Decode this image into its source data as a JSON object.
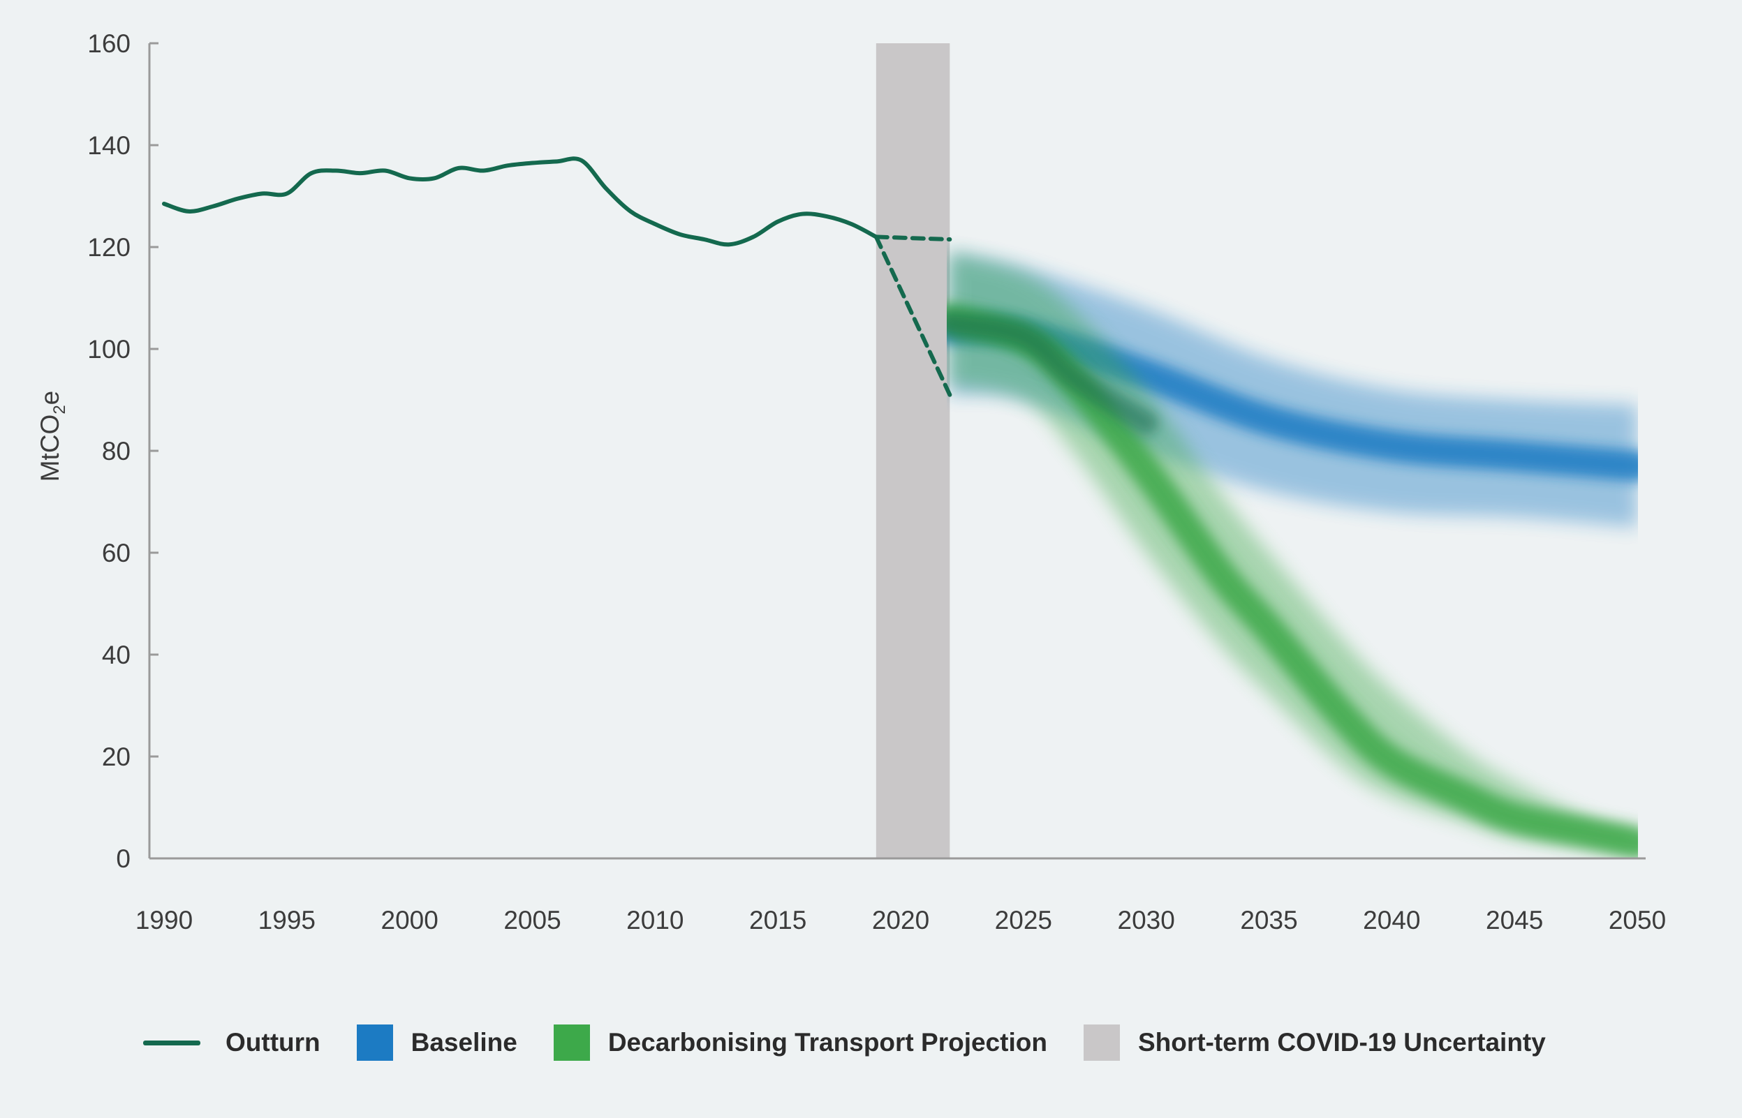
{
  "chart_data": {
    "type": "line",
    "title": "",
    "xlabel": "",
    "ylabel": "MtCO2e",
    "ylabel_parts": {
      "main": "MtCO",
      "sub": "2",
      "tail": "e"
    },
    "xlim": [
      1990,
      2050
    ],
    "ylim": [
      0,
      160
    ],
    "x_ticks": [
      "1990",
      "1995",
      "2000",
      "2005",
      "2010",
      "2015",
      "2020",
      "2025",
      "2030",
      "2035",
      "2040",
      "2045",
      "2050"
    ],
    "y_ticks": [
      "160",
      "140",
      "120",
      "100",
      "80",
      "60",
      "40",
      "20",
      "0"
    ],
    "grid": false,
    "legend_position": "bottom",
    "colors": {
      "outturn": "#14694e",
      "baseline": "#1c7bc3",
      "decarbonising": "#3da94a",
      "covid": "#c9c7c8",
      "axis": "#9a9a9a"
    },
    "covid_uncertainty": {
      "x_start": 2019,
      "x_end": 2022
    },
    "series": [
      {
        "name": "Outturn",
        "x": [
          1990,
          1991,
          1992,
          1993,
          1994,
          1995,
          1996,
          1997,
          1998,
          1999,
          2000,
          2001,
          2002,
          2003,
          2004,
          2005,
          2006,
          2007,
          2008,
          2009,
          2010,
          2011,
          2012,
          2013,
          2014,
          2015,
          2016,
          2017,
          2018,
          2019
        ],
        "values": [
          128.5,
          127,
          128,
          129.5,
          130.5,
          130.5,
          134.5,
          135,
          134.5,
          135,
          133.5,
          133.5,
          135.5,
          135,
          136,
          136.5,
          136.8,
          137,
          131.5,
          127,
          124.5,
          122.5,
          121.5,
          120.5,
          122,
          125,
          126.5,
          126,
          124.5,
          122
        ]
      },
      {
        "name": "",
        "style": "dashed",
        "x": [
          2019,
          2022
        ],
        "values": [
          122,
          121.5
        ]
      },
      {
        "name": "",
        "style": "dashed",
        "x": [
          2019,
          2022
        ],
        "values": [
          122,
          91
        ]
      },
      {
        "name": "Baseline",
        "style": "band",
        "x": [
          2022,
          2025,
          2030,
          2035,
          2040,
          2045,
          2050
        ],
        "values": [
          104,
          103,
          95,
          86,
          81,
          79,
          77
        ],
        "lower": [
          91,
          90,
          80,
          72,
          68,
          67,
          65
        ],
        "upper": [
          119,
          116,
          108,
          98,
          92,
          90,
          89
        ]
      },
      {
        "name": "Decarbonising Transport Projection",
        "style": "band",
        "x": [
          2022,
          2025,
          2027,
          2030,
          2033,
          2035,
          2038,
          2040,
          2043,
          2045,
          2048,
          2050
        ],
        "values": [
          106,
          102,
          94,
          76,
          56,
          45,
          28,
          19,
          12,
          8,
          5,
          3
        ],
        "lower": [
          93,
          90,
          80,
          60,
          42,
          32,
          18,
          12,
          7,
          4,
          2,
          1
        ],
        "upper": [
          119,
          115,
          108,
          92,
          72,
          60,
          43,
          33,
          21,
          15,
          8,
          6
        ]
      }
    ]
  },
  "legend": {
    "items": [
      {
        "label": "Outturn",
        "kind": "line",
        "color": "#14694e"
      },
      {
        "label": "Baseline",
        "kind": "box",
        "color": "#1c7bc3"
      },
      {
        "label": "Decarbonising Transport Projection",
        "kind": "box",
        "color": "#3da94a"
      },
      {
        "label": "Short-term COVID-19 Uncertainty",
        "kind": "box",
        "color": "#c9c7c8"
      }
    ]
  }
}
